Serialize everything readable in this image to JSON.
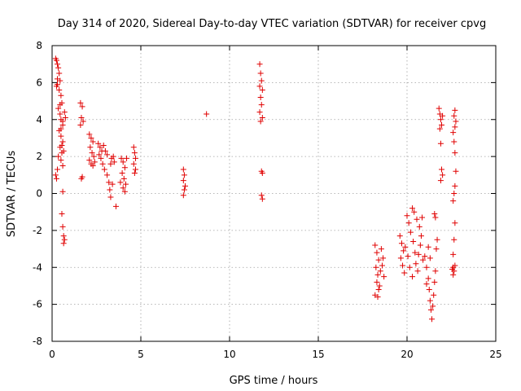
{
  "chart_data": {
    "type": "scatter",
    "title": "Day 314 of 2020, Sidereal Day-to-day VTEC variation (SDTVAR) for receiver cpvg",
    "xlabel": "GPS time / hours",
    "ylabel": "SDTVAR / TECUs",
    "xlim": [
      0,
      25
    ],
    "ylim": [
      -8,
      8
    ],
    "xticks": [
      0,
      5,
      10,
      15,
      20,
      25
    ],
    "yticks": [
      -8,
      -6,
      -4,
      -2,
      0,
      2,
      4,
      6,
      8
    ],
    "xtick_labels": [
      "0",
      "5",
      "10",
      "15",
      "20",
      "25"
    ],
    "ytick_labels": [
      "-8",
      "-6",
      "-4",
      "-2",
      "0",
      "2",
      "4",
      "6",
      "8"
    ],
    "grid": true,
    "marker": "+",
    "series": [
      {
        "name": "SDTVAR",
        "color": "#e00000",
        "points": [
          [
            0.2,
            7.3
          ],
          [
            0.25,
            7.2
          ],
          [
            0.3,
            7.0
          ],
          [
            0.35,
            6.8
          ],
          [
            0.4,
            6.5
          ],
          [
            0.45,
            6.1
          ],
          [
            0.3,
            5.9
          ],
          [
            0.4,
            5.6
          ],
          [
            0.5,
            5.3
          ],
          [
            0.55,
            4.9
          ],
          [
            0.35,
            4.6
          ],
          [
            0.45,
            4.3
          ],
          [
            0.5,
            4.0
          ],
          [
            0.6,
            3.7
          ],
          [
            0.4,
            3.4
          ],
          [
            0.5,
            3.1
          ],
          [
            0.6,
            2.8
          ],
          [
            0.45,
            2.5
          ],
          [
            0.55,
            2.2
          ],
          [
            0.35,
            2.0
          ],
          [
            0.5,
            1.8
          ],
          [
            0.6,
            1.5
          ],
          [
            0.3,
            1.3
          ],
          [
            0.2,
            1.0
          ],
          [
            0.25,
            0.8
          ],
          [
            0.55,
            2.6
          ],
          [
            0.65,
            2.3
          ],
          [
            0.7,
            4.4
          ],
          [
            0.75,
            4.1
          ],
          [
            0.6,
            3.9
          ],
          [
            0.6,
            0.1
          ],
          [
            0.55,
            -1.1
          ],
          [
            0.6,
            -1.8
          ],
          [
            0.65,
            -2.3
          ],
          [
            0.7,
            -2.5
          ],
          [
            0.65,
            -2.7
          ],
          [
            0.3,
            6.2
          ],
          [
            0.25,
            5.8
          ],
          [
            0.45,
            4.8
          ],
          [
            0.5,
            3.5
          ],
          [
            1.6,
            4.9
          ],
          [
            1.7,
            4.7
          ],
          [
            1.65,
            4.1
          ],
          [
            1.75,
            3.9
          ],
          [
            1.6,
            3.7
          ],
          [
            1.7,
            0.9
          ],
          [
            1.65,
            0.8
          ],
          [
            2.1,
            3.2
          ],
          [
            2.2,
            3.0
          ],
          [
            2.3,
            2.8
          ],
          [
            2.15,
            2.5
          ],
          [
            2.25,
            2.2
          ],
          [
            2.35,
            2.0
          ],
          [
            2.1,
            1.8
          ],
          [
            2.2,
            1.6
          ],
          [
            2.3,
            1.5
          ],
          [
            2.4,
            1.7
          ],
          [
            2.6,
            2.7
          ],
          [
            2.7,
            2.5
          ],
          [
            2.8,
            2.3
          ],
          [
            2.65,
            2.1
          ],
          [
            2.75,
            1.9
          ],
          [
            2.9,
            2.6
          ],
          [
            3.0,
            2.3
          ],
          [
            3.1,
            2.1
          ],
          [
            2.85,
            1.6
          ],
          [
            2.95,
            1.3
          ],
          [
            3.1,
            1.0
          ],
          [
            3.2,
            0.6
          ],
          [
            3.25,
            0.2
          ],
          [
            3.3,
            -0.2
          ],
          [
            3.4,
            0.5
          ],
          [
            3.3,
            1.6
          ],
          [
            3.35,
            1.9
          ],
          [
            3.45,
            2.0
          ],
          [
            3.5,
            1.7
          ],
          [
            3.6,
            -0.7
          ],
          [
            3.9,
            1.9
          ],
          [
            4.0,
            1.7
          ],
          [
            4.1,
            1.4
          ],
          [
            3.95,
            1.1
          ],
          [
            4.05,
            0.8
          ],
          [
            4.15,
            0.5
          ],
          [
            4.0,
            0.3
          ],
          [
            4.1,
            0.1
          ],
          [
            3.85,
            0.6
          ],
          [
            4.2,
            1.9
          ],
          [
            4.6,
            2.5
          ],
          [
            4.65,
            2.2
          ],
          [
            4.7,
            1.9
          ],
          [
            4.6,
            1.6
          ],
          [
            4.7,
            1.3
          ],
          [
            4.65,
            1.1
          ],
          [
            7.4,
            1.3
          ],
          [
            7.45,
            1.0
          ],
          [
            7.4,
            0.7
          ],
          [
            7.5,
            0.4
          ],
          [
            7.45,
            0.2
          ],
          [
            7.4,
            -0.1
          ],
          [
            8.7,
            4.3
          ],
          [
            11.7,
            7.0
          ],
          [
            11.75,
            6.5
          ],
          [
            11.8,
            6.1
          ],
          [
            11.7,
            5.8
          ],
          [
            11.85,
            5.6
          ],
          [
            11.75,
            5.2
          ],
          [
            11.8,
            4.8
          ],
          [
            11.7,
            4.4
          ],
          [
            11.85,
            4.1
          ],
          [
            11.75,
            3.9
          ],
          [
            11.8,
            1.2
          ],
          [
            11.85,
            1.1
          ],
          [
            11.8,
            -0.1
          ],
          [
            11.85,
            -0.3
          ],
          [
            18.2,
            -2.8
          ],
          [
            18.3,
            -3.2
          ],
          [
            18.4,
            -3.6
          ],
          [
            18.25,
            -4.0
          ],
          [
            18.35,
            -4.4
          ],
          [
            18.3,
            -4.8
          ],
          [
            18.4,
            -5.2
          ],
          [
            18.2,
            -5.5
          ],
          [
            18.5,
            -4.2
          ],
          [
            18.6,
            -3.9
          ],
          [
            18.55,
            -3.0
          ],
          [
            18.65,
            -3.5
          ],
          [
            18.7,
            -4.5
          ],
          [
            18.45,
            -5.0
          ],
          [
            18.35,
            -5.6
          ],
          [
            19.6,
            -2.3
          ],
          [
            19.7,
            -2.7
          ],
          [
            19.8,
            -3.1
          ],
          [
            19.65,
            -3.5
          ],
          [
            19.75,
            -3.9
          ],
          [
            19.85,
            -4.3
          ],
          [
            19.9,
            -2.9
          ],
          [
            20.0,
            -1.2
          ],
          [
            20.1,
            -1.6
          ],
          [
            20.2,
            -2.1
          ],
          [
            20.3,
            -0.8
          ],
          [
            20.4,
            -1.0
          ],
          [
            20.35,
            -2.6
          ],
          [
            20.45,
            -3.2
          ],
          [
            20.5,
            -3.8
          ],
          [
            20.6,
            -4.2
          ],
          [
            20.3,
            -4.5
          ],
          [
            20.15,
            -4.0
          ],
          [
            20.05,
            -3.4
          ],
          [
            20.55,
            -1.4
          ],
          [
            20.7,
            -1.8
          ],
          [
            20.8,
            -2.3
          ],
          [
            20.75,
            -2.8
          ],
          [
            20.65,
            -3.3
          ],
          [
            20.85,
            -1.3
          ],
          [
            20.9,
            -3.6
          ],
          [
            21.0,
            -3.4
          ],
          [
            21.1,
            -4.0
          ],
          [
            21.2,
            -4.6
          ],
          [
            21.25,
            -5.2
          ],
          [
            21.3,
            -5.8
          ],
          [
            21.35,
            -6.3
          ],
          [
            21.4,
            -6.8
          ],
          [
            21.45,
            -6.1
          ],
          [
            21.5,
            -5.5
          ],
          [
            21.55,
            -4.8
          ],
          [
            21.6,
            -4.2
          ],
          [
            21.3,
            -3.5
          ],
          [
            21.2,
            -2.9
          ],
          [
            21.1,
            -4.9
          ],
          [
            21.65,
            -3.0
          ],
          [
            21.7,
            -2.5
          ],
          [
            21.55,
            -1.1
          ],
          [
            21.6,
            -1.3
          ],
          [
            21.8,
            4.6
          ],
          [
            21.85,
            4.3
          ],
          [
            21.9,
            4.0
          ],
          [
            21.95,
            3.7
          ],
          [
            21.85,
            3.5
          ],
          [
            22.0,
            4.2
          ],
          [
            21.9,
            2.7
          ],
          [
            21.95,
            1.3
          ],
          [
            22.0,
            1.0
          ],
          [
            21.9,
            0.7
          ],
          [
            22.6,
            -4.0
          ],
          [
            22.65,
            -4.2
          ],
          [
            22.55,
            -4.1
          ],
          [
            22.7,
            -3.9
          ],
          [
            22.6,
            -3.3
          ],
          [
            22.65,
            -2.5
          ],
          [
            22.7,
            -1.6
          ],
          [
            22.6,
            -0.4
          ],
          [
            22.65,
            0.0
          ],
          [
            22.7,
            0.4
          ],
          [
            22.75,
            1.2
          ],
          [
            22.7,
            2.2
          ],
          [
            22.65,
            2.8
          ],
          [
            22.6,
            3.3
          ],
          [
            22.7,
            3.6
          ],
          [
            22.75,
            3.9
          ],
          [
            22.65,
            4.2
          ],
          [
            22.7,
            4.5
          ],
          [
            22.6,
            -4.4
          ]
        ]
      }
    ]
  }
}
